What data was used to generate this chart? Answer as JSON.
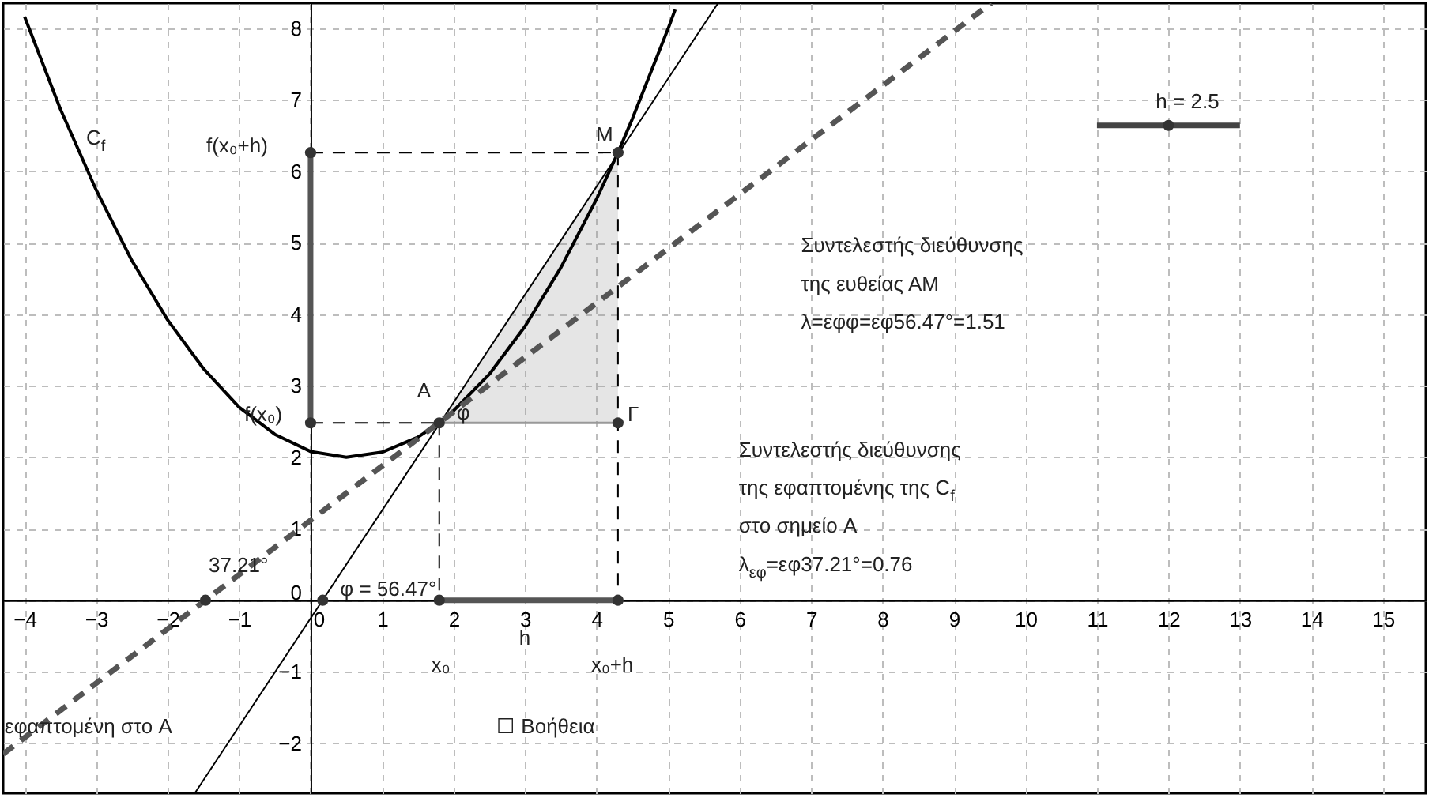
{
  "chart_data": {
    "type": "line",
    "xlim": [
      -4.3,
      15.6
    ],
    "ylim": [
      -2.7,
      8.35
    ],
    "xticks": [
      -4,
      -3,
      -2,
      -1,
      0,
      1,
      2,
      3,
      4,
      5,
      6,
      7,
      8,
      9,
      10,
      11,
      12,
      13,
      14,
      15
    ],
    "yticks": [
      -2,
      -1,
      0,
      1,
      2,
      3,
      4,
      5,
      6,
      7,
      8
    ],
    "grid": true,
    "series": [
      {
        "color": "#999999",
        "line_style": "solid",
        "x": [
          1.8,
          4.3
        ],
        "values": [
          2.48,
          2.48
        ],
        "lower": [
          2.48,
          2.48
        ],
        "upper": [
          2.48,
          6.26
        ]
      },
      {
        "color": "#000000",
        "x": [
          -4,
          -3.5,
          -3,
          -2.5,
          -2,
          -1.5,
          -1,
          -0.5,
          0,
          0.5,
          1,
          1.5,
          1.8,
          2,
          2.5,
          3,
          3.5,
          4,
          4.3,
          4.5,
          5,
          5.1
        ],
        "values": [
          8.16,
          6.87,
          5.74,
          4.75,
          3.92,
          3.24,
          2.7,
          2.32,
          2.08,
          2.0,
          2.07,
          2.28,
          2.48,
          2.65,
          3.16,
          3.83,
          4.65,
          5.61,
          6.26,
          6.73,
          7.99,
          8.26
        ]
      },
      {
        "color": "#000000",
        "line_style": "solid",
        "x": [
          -1.62,
          5.7
        ],
        "values": [
          -2.7,
          8.35
        ]
      },
      {
        "color": "#555555",
        "line_style": "dashed",
        "x": [
          -4.3,
          9.52
        ],
        "values": [
          -2.15,
          8.35
        ]
      },
      {
        "color": "#000000",
        "line_style": "dashed",
        "x": [
          0,
          4.3
        ],
        "values": [
          6.26,
          6.26
        ]
      },
      {
        "color": "#000000",
        "line_style": "dashed",
        "x": [
          0,
          1.8
        ],
        "values": [
          2.48,
          2.48
        ]
      },
      {
        "color": "#000000",
        "line_style": "dashed",
        "x": [
          1.8,
          1.8
        ],
        "values": [
          2.48,
          0
        ]
      },
      {
        "color": "#000000",
        "line_style": "dashed",
        "x": [
          4.3,
          4.3
        ],
        "values": [
          6.26,
          0
        ]
      },
      {
        "color": "#555555",
        "line_style": "solid",
        "x": [
          0,
          0
        ],
        "values": [
          2.48,
          6.26
        ]
      },
      {
        "color": "#555555",
        "line_style": "solid",
        "x": [
          1.8,
          4.3
        ],
        "values": [
          0,
          0
        ]
      },
      {
        "color": "#444444",
        "line_style": "solid",
        "x": [
          11,
          13
        ],
        "values": [
          6.64,
          6.64
        ]
      },
      {
        "type": "scatter",
        "color": "#333333",
        "marker": "circle",
        "x": [
          1.8,
          4.3,
          4.3,
          0,
          0,
          1.8,
          4.3,
          -1.47,
          0.17,
          12
        ],
        "values": [
          2.48,
          6.26,
          2.48,
          6.26,
          2.48,
          0,
          0,
          0,
          0,
          6.64
        ]
      }
    ],
    "annotations": [
      "C$_{f}$",
      {
        "text": "f(x₀+h)",
        "x": 0,
        "y": 6.26
      },
      {
        "text": "f(x₀)",
        "x": 0,
        "y": 2.48
      },
      {
        "text": "A",
        "x": 1.8,
        "y": 2.48
      },
      {
        "text": "M",
        "x": 4.3,
        "y": 6.26
      },
      {
        "text": "Γ",
        "x": 4.3,
        "y": 2.48
      },
      {
        "text": "φ",
        "x": 1.8,
        "y": 2.48
      },
      {
        "text": "37.21°",
        "x": -1.47,
        "y": 0
      },
      {
        "text": "φ = 56.47°",
        "x": 0.17,
        "y": 0
      },
      {
        "text": "h",
        "x": 3.05,
        "y": 0
      },
      {
        "text": "x₀",
        "x": 1.8,
        "y": 0
      },
      {
        "text": "x₀+h",
        "x": 4.3,
        "y": 0
      },
      "εφαπτομένη στο A",
      "☐ Βοήθεια",
      {
        "text": "h = 2.5",
        "x": 12,
        "y": 6.64
      },
      "Συντελεστής διεύθυνσης",
      "της ευθείας ΑΜ",
      "λ=εφφ=εφ56.47°=1.51",
      "Συντελεστής διεύθυνσης",
      "της εφαπτομένης της C$_{f}$",
      "στο σημείο A",
      "λ$_{εφ}$=εφ37.21°=0.76"
    ]
  }
}
